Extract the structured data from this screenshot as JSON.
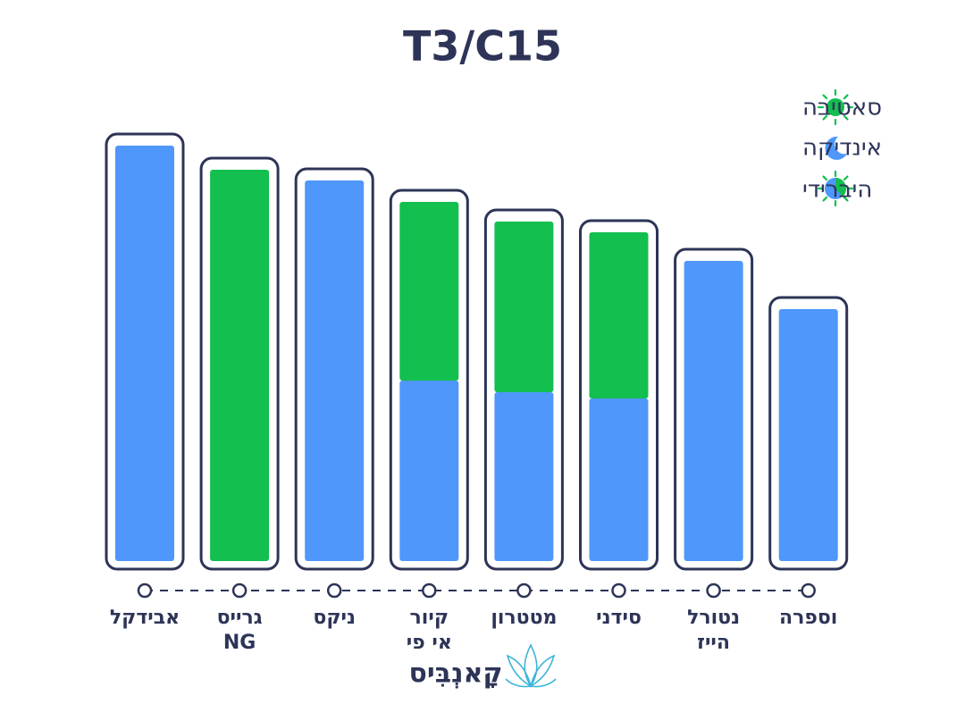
{
  "chart_data": {
    "type": "stacked-bar",
    "title": "T3/C15",
    "categories": [
      "אבידקל",
      "גרייס\nNG",
      "ניקס",
      "קיור\nאי פי",
      "מטטרון",
      "סידני",
      "נטורל\nהייז",
      "וספרה"
    ],
    "series": [
      {
        "name": "אינדיקה",
        "color": "#4f97fb",
        "values": [
          465,
          null,
          426,
          202,
          189,
          182,
          336,
          282
        ]
      },
      {
        "name": "סאטיבה",
        "color": "#12bf4f",
        "values": [
          null,
          438,
          null,
          200,
          191,
          186,
          null,
          null
        ]
      }
    ],
    "hybrid_legend": "היברידי",
    "ylim": [
      0,
      500
    ],
    "brand": "קָאנְבִּיס"
  }
}
